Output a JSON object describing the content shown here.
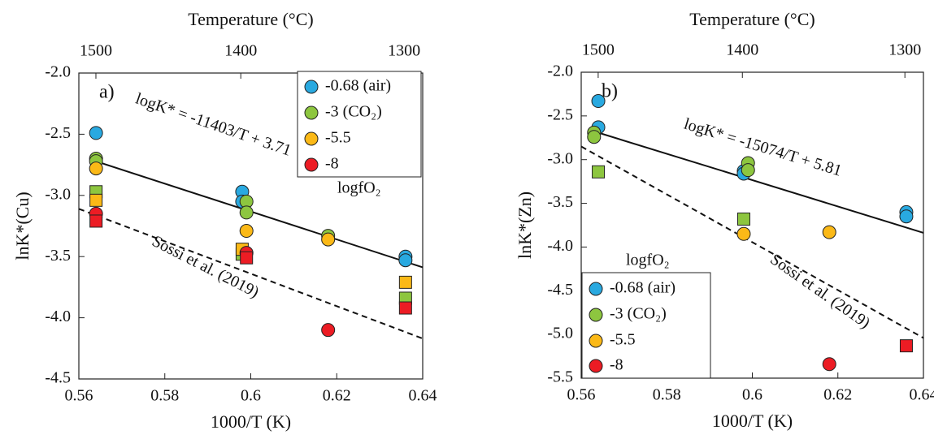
{
  "chart_data": [
    {
      "type": "scatter",
      "panel_label": "a)",
      "x_label": "1000/T (K)",
      "y_label": "lnK*(Cu)",
      "top_axis_label": "Temperature (°C)",
      "xlim": [
        0.56,
        0.64
      ],
      "xticks": [
        0.56,
        0.58,
        0.6,
        0.62,
        0.64
      ],
      "ylim": [
        -4.5,
        -2
      ],
      "yticks": [
        {
          "value": -2,
          "label": "-2.0"
        },
        -2.5,
        {
          "value": -3,
          "label": "-3.0"
        },
        -3.5,
        {
          "value": -4,
          "label": "-4.0"
        },
        -4.5
      ],
      "x2ticks": [
        1500,
        1400,
        1300
      ],
      "legend_title": "logfO₂",
      "legend": "upper right",
      "series": [
        {
          "name": "-0.68 (air)",
          "color": "#29a9e0",
          "x": [
            0.564,
            0.598,
            0.598,
            0.636,
            0.636
          ],
          "values": [
            -2.49,
            -2.97,
            -3.05,
            -3.5,
            -3.53
          ],
          "markers": [
            "circle",
            "circle",
            "circle",
            "circle",
            "circle"
          ]
        },
        {
          "name": "-3 (CO₂)",
          "color": "#8dc63f",
          "x": [
            0.564,
            0.564,
            0.599,
            0.599,
            0.618,
            0.564,
            0.598,
            0.636
          ],
          "values": [
            -2.7,
            -2.72,
            -3.05,
            -3.14,
            -3.33,
            -2.97,
            -3.48,
            -3.84
          ],
          "markers": [
            "circle",
            "circle",
            "circle",
            "circle",
            "circle",
            "square",
            "square",
            "square"
          ]
        },
        {
          "name": "-5.5",
          "color": "#fbb917",
          "x": [
            0.564,
            0.599,
            0.618,
            0.564,
            0.598,
            0.636
          ],
          "values": [
            -2.78,
            -3.29,
            -3.36,
            -3.04,
            -3.44,
            -3.71
          ],
          "markers": [
            "circle",
            "circle",
            "circle",
            "square",
            "square",
            "square"
          ]
        },
        {
          "name": "-8",
          "color": "#ec1c24",
          "x": [
            0.564,
            0.599,
            0.618,
            0.564,
            0.599,
            0.636
          ],
          "values": [
            -3.15,
            -3.47,
            -4.1,
            -3.21,
            -3.51,
            -3.92
          ],
          "markers": [
            "circle",
            "circle",
            "circle",
            "square",
            "square",
            "square"
          ]
        }
      ],
      "fit": {
        "label": "logK* = -11403/T + 3.71",
        "slope": -11403,
        "intercept": 3.71
      },
      "reference": {
        "label": "Sossi et al. (2019)",
        "x": [
          0.56,
          0.64
        ],
        "values": [
          -3.11,
          -4.17
        ]
      }
    },
    {
      "type": "scatter",
      "panel_label": "b)",
      "x_label": "1000/T (K)",
      "y_label": "lnK*(Zn)",
      "top_axis_label": "Temperature (°C)",
      "xlim": [
        0.56,
        0.64
      ],
      "xticks": [
        0.56,
        0.58,
        0.6,
        0.62,
        0.64
      ],
      "ylim": [
        -5.5,
        -2
      ],
      "yticks": [
        {
          "value": -2,
          "label": "-2.0"
        },
        -2.5,
        {
          "value": -3,
          "label": "-3.0"
        },
        -3.5,
        {
          "value": -4,
          "label": "-4.0"
        },
        -4.5,
        {
          "value": -5,
          "label": "-5.0"
        },
        -5.5
      ],
      "x2ticks": [
        1500,
        1400,
        1300
      ],
      "legend_title": "logfO₂",
      "legend": "lower left",
      "series": [
        {
          "name": "-0.68 (air)",
          "color": "#29a9e0",
          "x": [
            0.564,
            0.564,
            0.598,
            0.598,
            0.636,
            0.636
          ],
          "values": [
            -2.33,
            -2.63,
            -3.13,
            -3.16,
            -3.6,
            -3.65
          ],
          "markers": [
            "circle",
            "circle",
            "circle",
            "circle",
            "circle",
            "circle"
          ]
        },
        {
          "name": "-3 (CO₂)",
          "color": "#8dc63f",
          "x": [
            0.563,
            0.563,
            0.599,
            0.599,
            0.564,
            0.598
          ],
          "values": [
            -2.69,
            -2.74,
            -3.04,
            -3.12,
            -3.14,
            -3.68
          ],
          "markers": [
            "circle",
            "circle",
            "circle",
            "circle",
            "square",
            "square"
          ]
        },
        {
          "name": "-5.5",
          "color": "#fbb917",
          "x": [
            0.598,
            0.618
          ],
          "values": [
            -3.85,
            -3.83
          ],
          "markers": [
            "circle",
            "circle"
          ]
        },
        {
          "name": "-8",
          "color": "#ec1c24",
          "x": [
            0.618,
            0.636
          ],
          "values": [
            -5.34,
            -5.13
          ],
          "markers": [
            "circle",
            "square"
          ]
        }
      ],
      "fit": {
        "label": "logK* = -15074/T + 5.81",
        "slope": -15074,
        "intercept": 5.81
      },
      "reference": {
        "label": "Sossi et al. (2019)",
        "x": [
          0.56,
          0.64
        ],
        "values": [
          -2.85,
          -5.04
        ]
      }
    }
  ]
}
